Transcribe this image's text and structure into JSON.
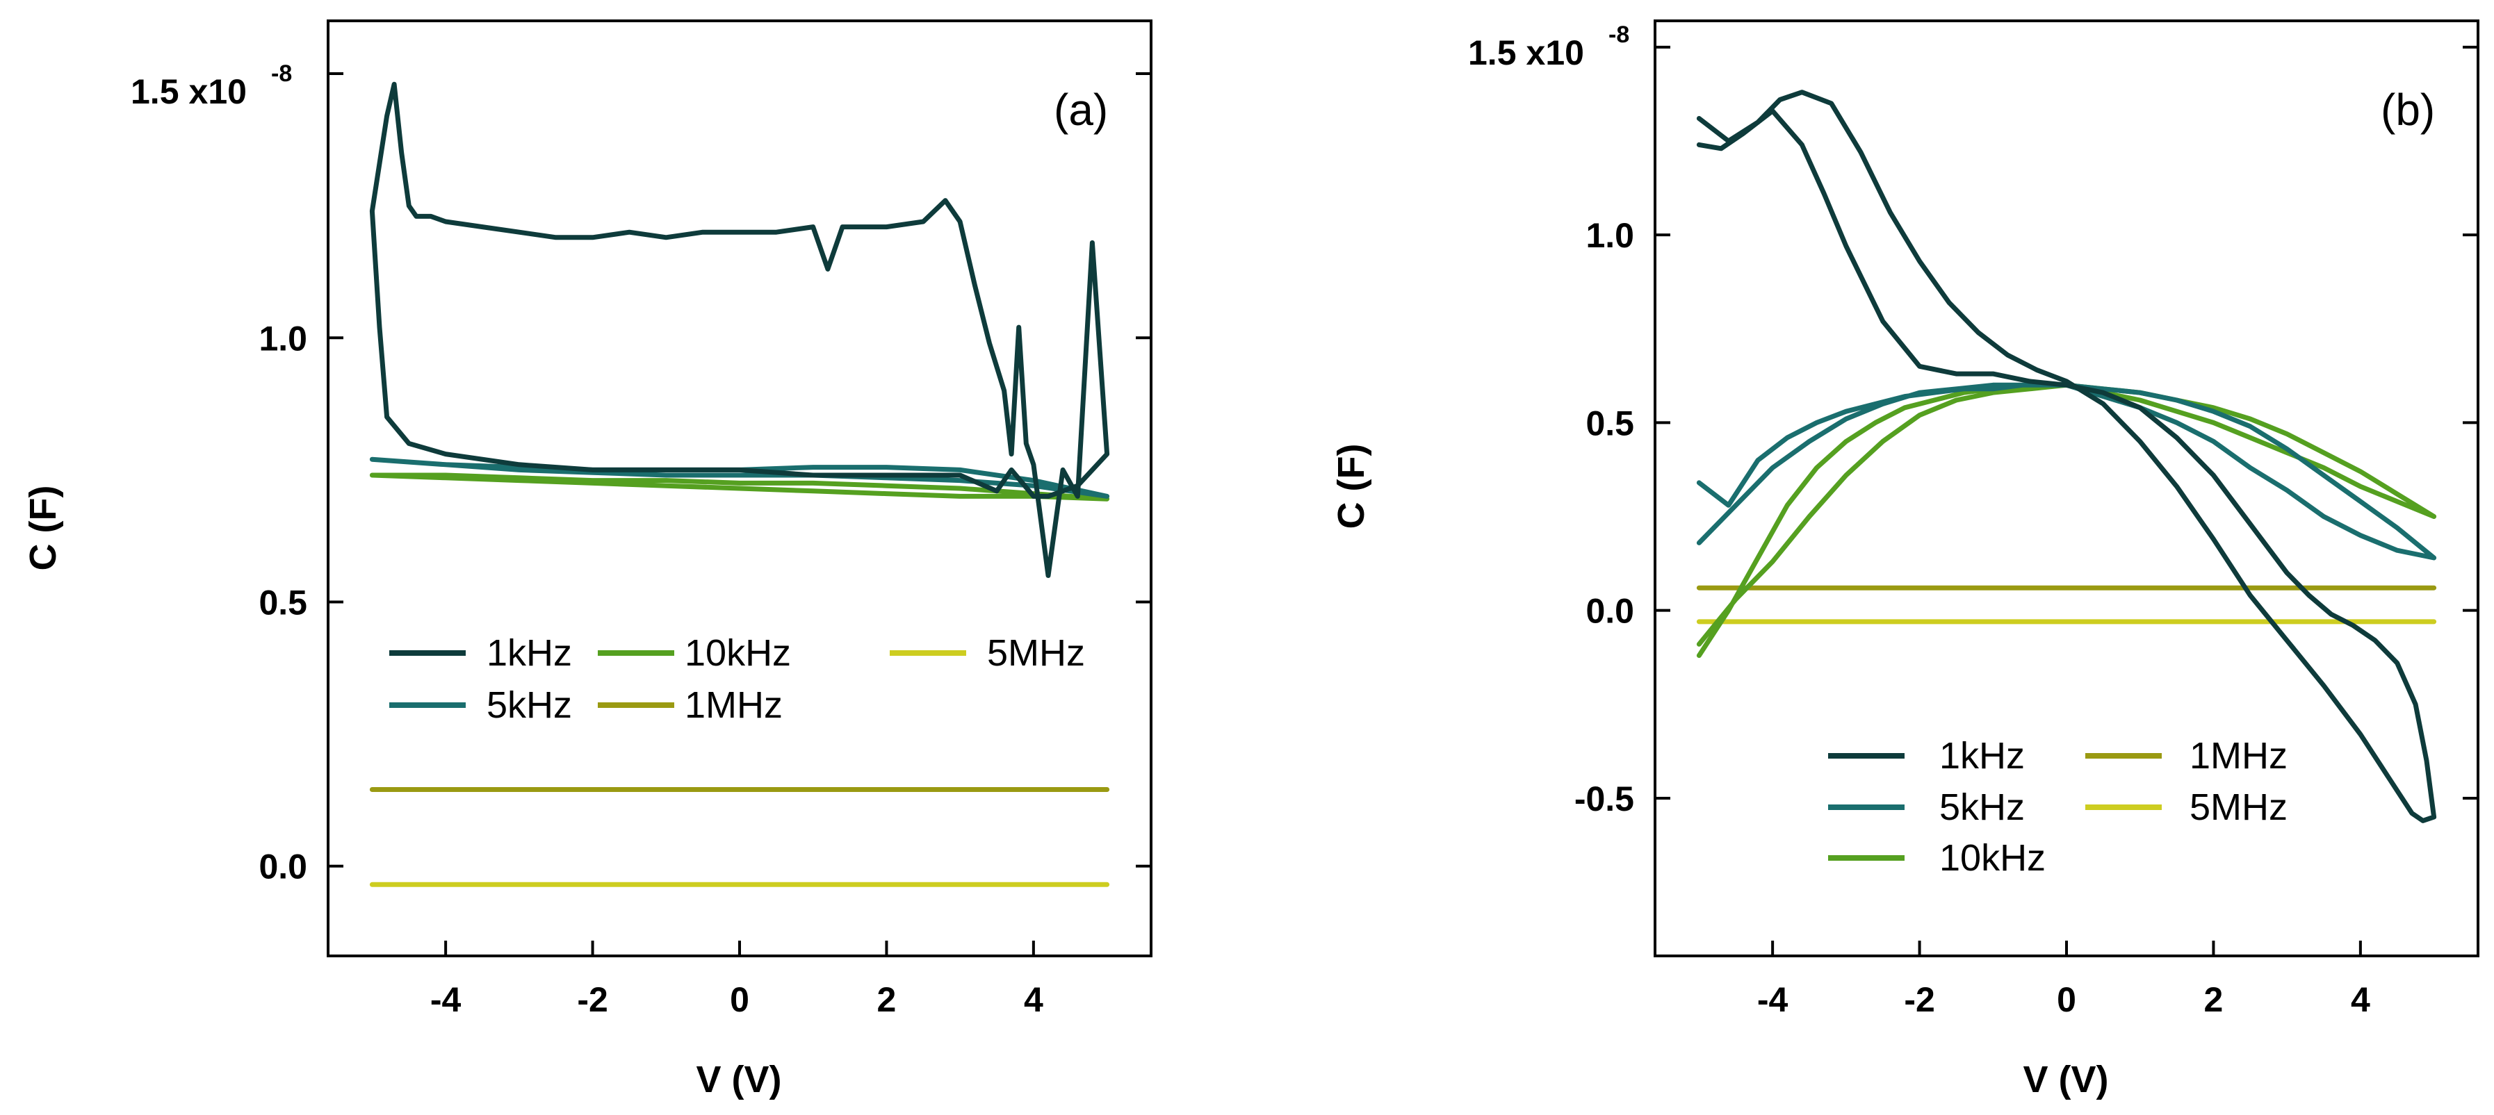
{
  "chart_data": [
    {
      "type": "line",
      "panel_label": "(a)",
      "xlabel": "V (V)",
      "ylabel": "C (F)",
      "xlim": [
        -5.6,
        5.6
      ],
      "ylim": [
        -0.17,
        1.6
      ],
      "y_exponent_label": "x10",
      "y_exponent": "-8",
      "x_ticks": [
        -4,
        -2,
        0,
        2,
        4
      ],
      "x_tick_labels": [
        "-4",
        "-2",
        "0",
        "2",
        "4"
      ],
      "y_ticks": [
        0.0,
        0.5,
        1.0,
        1.5
      ],
      "y_tick_labels": [
        "0.0",
        "0.5",
        "1.0",
        "1.5"
      ],
      "legend": [
        {
          "name": "1kHz",
          "color": "#0e3b3b"
        },
        {
          "name": "5kHz",
          "color": "#1a6e6e"
        },
        {
          "name": "10kHz",
          "color": "#55a020"
        },
        {
          "name": "1MHz",
          "color": "#9a9a12"
        },
        {
          "name": "5MHz",
          "color": "#cdcd20"
        }
      ],
      "series": [
        {
          "name": "1kHz",
          "color": "#0e3b3b",
          "x": [
            -5.0,
            -4.9,
            -4.8,
            -4.7,
            -4.6,
            -4.5,
            -4.4,
            -4.2,
            -4.0,
            -3.5,
            -3.0,
            -2.5,
            -2.0,
            -1.5,
            -1.0,
            -0.5,
            0.0,
            0.5,
            1.0,
            1.2,
            1.4,
            2.0,
            2.5,
            2.8,
            3.0,
            3.2,
            3.4,
            3.6,
            3.7,
            3.8,
            3.9,
            4.0,
            4.2,
            4.4,
            4.6,
            4.8,
            5.0,
            4.6,
            4.2,
            4.0,
            3.7,
            3.5,
            3.0,
            2.0,
            1.0,
            0.0,
            -1.0,
            -2.0,
            -3.0,
            -4.0,
            -4.5,
            -4.8,
            -4.9,
            -5.0
          ],
          "y": [
            1.24,
            1.33,
            1.42,
            1.48,
            1.35,
            1.25,
            1.23,
            1.23,
            1.22,
            1.21,
            1.2,
            1.19,
            1.19,
            1.2,
            1.19,
            1.2,
            1.2,
            1.2,
            1.21,
            1.13,
            1.21,
            1.21,
            1.22,
            1.26,
            1.22,
            1.1,
            0.99,
            0.9,
            0.78,
            1.02,
            0.8,
            0.76,
            0.55,
            0.75,
            0.7,
            1.18,
            0.78,
            0.72,
            0.7,
            0.7,
            0.75,
            0.71,
            0.74,
            0.74,
            0.74,
            0.75,
            0.75,
            0.75,
            0.76,
            0.78,
            0.8,
            0.85,
            1.02,
            1.24
          ]
        },
        {
          "name": "5kHz",
          "color": "#1a6e6e",
          "x": [
            -5.0,
            -4.0,
            -3.0,
            -2.0,
            -1.0,
            0.0,
            1.0,
            2.0,
            3.0,
            4.0,
            5.0,
            4.0,
            3.0,
            2.0,
            1.0,
            0.0,
            -1.0,
            -2.0,
            -3.0,
            -4.0,
            -5.0
          ],
          "y": [
            0.77,
            0.76,
            0.75,
            0.745,
            0.74,
            0.74,
            0.74,
            0.735,
            0.73,
            0.72,
            0.7,
            0.73,
            0.75,
            0.755,
            0.755,
            0.75,
            0.75,
            0.75,
            0.755,
            0.76,
            0.77
          ]
        },
        {
          "name": "10kHz",
          "color": "#55a020",
          "x": [
            -5.0,
            -4.0,
            -3.0,
            -2.0,
            -1.0,
            0.0,
            1.0,
            2.0,
            3.0,
            4.0,
            5.0,
            4.0,
            3.0,
            2.0,
            1.0,
            0.0,
            -1.0,
            -2.0,
            -3.0,
            -4.0,
            -5.0
          ],
          "y": [
            0.74,
            0.735,
            0.73,
            0.725,
            0.72,
            0.715,
            0.71,
            0.705,
            0.7,
            0.7,
            0.695,
            0.705,
            0.715,
            0.72,
            0.725,
            0.725,
            0.73,
            0.73,
            0.735,
            0.74,
            0.74
          ]
        },
        {
          "name": "1MHz",
          "color": "#9a9a12",
          "x": [
            -5.0,
            5.0
          ],
          "y": [
            0.145,
            0.145
          ]
        },
        {
          "name": "5MHz",
          "color": "#cdcd20",
          "x": [
            -5.0,
            5.0
          ],
          "y": [
            -0.035,
            -0.035
          ]
        }
      ]
    },
    {
      "type": "line",
      "panel_label": "(b)",
      "xlabel": "V (V)",
      "ylabel": "C (F)",
      "xlim": [
        -5.6,
        5.6
      ],
      "ylim": [
        -0.92,
        1.57
      ],
      "y_exponent_label": "x10",
      "y_exponent": "-8",
      "x_ticks": [
        -4,
        -2,
        0,
        2,
        4
      ],
      "x_tick_labels": [
        "-4",
        "-2",
        "0",
        "2",
        "4"
      ],
      "y_ticks": [
        -0.5,
        0.0,
        0.5,
        1.0,
        1.5
      ],
      "y_tick_labels": [
        "-0.5",
        "0.0",
        "0.5",
        "1.0",
        "1.5"
      ],
      "legend": [
        {
          "name": "1kHz",
          "color": "#0e3b3b"
        },
        {
          "name": "5kHz",
          "color": "#1a6e6e"
        },
        {
          "name": "10kHz",
          "color": "#55a020"
        },
        {
          "name": "1MHz",
          "color": "#9a9a12"
        },
        {
          "name": "5MHz",
          "color": "#cdcd20"
        }
      ],
      "series": [
        {
          "name": "1kHz",
          "color": "#0e3b3b",
          "x": [
            -5.0,
            -4.6,
            -4.2,
            -3.9,
            -3.6,
            -3.2,
            -2.8,
            -2.4,
            -2.0,
            -1.6,
            -1.2,
            -0.8,
            -0.4,
            0.0,
            0.5,
            1.0,
            1.5,
            2.0,
            2.5,
            3.0,
            3.5,
            4.0,
            4.4,
            4.7,
            4.85,
            5.0,
            4.9,
            4.75,
            4.5,
            4.2,
            3.9,
            3.6,
            3.3,
            3.0,
            2.5,
            2.0,
            1.5,
            1.0,
            0.5,
            0.0,
            -0.5,
            -1.0,
            -1.5,
            -2.0,
            -2.5,
            -3.0,
            -3.3,
            -3.6,
            -4.0,
            -4.4,
            -4.7,
            -5.0
          ],
          "y": [
            1.31,
            1.25,
            1.3,
            1.36,
            1.38,
            1.35,
            1.22,
            1.06,
            0.93,
            0.82,
            0.74,
            0.68,
            0.64,
            0.61,
            0.55,
            0.45,
            0.33,
            0.19,
            0.04,
            -0.08,
            -0.2,
            -0.33,
            -0.45,
            -0.54,
            -0.56,
            -0.55,
            -0.4,
            -0.25,
            -0.14,
            -0.08,
            -0.04,
            -0.01,
            0.04,
            0.1,
            0.23,
            0.36,
            0.46,
            0.54,
            0.58,
            0.6,
            0.61,
            0.63,
            0.63,
            0.65,
            0.77,
            0.97,
            1.11,
            1.24,
            1.33,
            1.27,
            1.23,
            1.24
          ]
        },
        {
          "name": "5kHz",
          "color": "#1a6e6e",
          "x": [
            -5.0,
            -4.6,
            -4.2,
            -3.8,
            -3.4,
            -3.0,
            -2.6,
            -2.2,
            -1.8,
            -1.4,
            -1.0,
            -0.6,
            -0.2,
            0.0,
            0.5,
            1.0,
            1.5,
            2.0,
            2.5,
            3.0,
            3.5,
            4.0,
            4.5,
            5.0,
            4.5,
            4.0,
            3.5,
            3.0,
            2.5,
            2.0,
            1.5,
            1.0,
            0.5,
            0.0,
            -0.5,
            -1.0,
            -1.5,
            -2.0,
            -2.5,
            -3.0,
            -3.5,
            -4.0,
            -4.5,
            -5.0
          ],
          "y": [
            0.34,
            0.28,
            0.4,
            0.46,
            0.5,
            0.53,
            0.55,
            0.57,
            0.58,
            0.59,
            0.59,
            0.6,
            0.6,
            0.6,
            0.57,
            0.54,
            0.5,
            0.45,
            0.38,
            0.32,
            0.25,
            0.2,
            0.16,
            0.14,
            0.22,
            0.29,
            0.36,
            0.43,
            0.49,
            0.53,
            0.56,
            0.58,
            0.59,
            0.6,
            0.6,
            0.6,
            0.59,
            0.58,
            0.55,
            0.51,
            0.45,
            0.38,
            0.28,
            0.18
          ]
        },
        {
          "name": "10kHz",
          "color": "#55a020",
          "x": [
            -5.0,
            -4.6,
            -4.2,
            -3.8,
            -3.4,
            -3.0,
            -2.6,
            -2.2,
            -1.8,
            -1.4,
            -1.0,
            -0.6,
            -0.2,
            0.0,
            0.5,
            1.0,
            1.5,
            2.0,
            2.5,
            3.0,
            3.5,
            4.0,
            4.5,
            5.0,
            4.5,
            4.0,
            3.5,
            3.0,
            2.5,
            2.0,
            1.5,
            1.0,
            0.5,
            0.0,
            -0.5,
            -1.0,
            -1.5,
            -2.0,
            -2.5,
            -3.0,
            -3.5,
            -4.0,
            -4.5,
            -5.0
          ],
          "y": [
            -0.12,
            0.0,
            0.14,
            0.28,
            0.38,
            0.45,
            0.5,
            0.54,
            0.56,
            0.58,
            0.59,
            0.59,
            0.6,
            0.6,
            0.58,
            0.56,
            0.53,
            0.5,
            0.46,
            0.42,
            0.38,
            0.33,
            0.29,
            0.25,
            0.31,
            0.37,
            0.42,
            0.47,
            0.51,
            0.54,
            0.56,
            0.58,
            0.59,
            0.6,
            0.59,
            0.58,
            0.56,
            0.52,
            0.45,
            0.36,
            0.25,
            0.13,
            0.03,
            -0.09
          ]
        },
        {
          "name": "1MHz",
          "color": "#9a9a12",
          "x": [
            -5.0,
            5.0
          ],
          "y": [
            0.06,
            0.06
          ]
        },
        {
          "name": "5MHz",
          "color": "#cdcd20",
          "x": [
            -5.0,
            5.0
          ],
          "y": [
            -0.03,
            -0.03
          ]
        }
      ]
    }
  ]
}
